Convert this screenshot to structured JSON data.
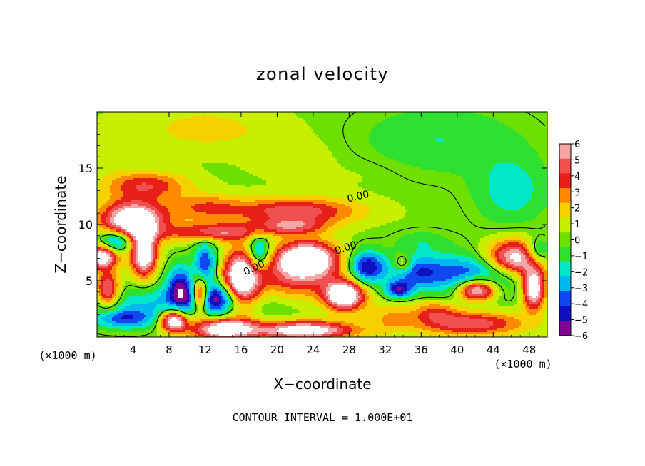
{
  "chart_data": {
    "type": "heatmap",
    "title": "zonal velocity",
    "xlabel": "X−coordinate",
    "ylabel": "Z−coordinate",
    "x_unit_left": "(×1000 m)",
    "x_unit_right": "(×1000 m)",
    "xlim": [
      0,
      50
    ],
    "ylim": [
      0,
      20
    ],
    "x_ticks": [
      "4",
      "8",
      "12",
      "16",
      "20",
      "24",
      "28",
      "32",
      "36",
      "40",
      "44",
      "48"
    ],
    "y_ticks": [
      "5",
      "10",
      "15"
    ],
    "colorbar": {
      "range": [
        -6,
        6
      ],
      "ticks": [
        "6",
        "5",
        "4",
        "3",
        "2",
        "1",
        "0",
        "−1",
        "−2",
        "−3",
        "−4",
        "−5",
        "−6"
      ],
      "saturated_color": "#ffffff"
    },
    "contour_labels": [
      "0.00",
      "0.00",
      "0.00"
    ],
    "footer": "CONTOUR INTERVAL = 1.000E+01",
    "colors": {
      "pos_6": "#f4a6a6",
      "pos_5": "#f05050",
      "pos_4": "#e8201a",
      "pos_3": "#ff8a00",
      "pos_2": "#f7d000",
      "pos_1": "#c6f000",
      "zero": "#6de000",
      "neg_1": "#30e030",
      "neg_2": "#00e8c8",
      "neg_3": "#00b8f0",
      "neg_4": "#1048f0",
      "neg_5": "#1010c0",
      "neg_6": "#800090"
    },
    "blobs": [
      {
        "x": 4,
        "y": 10.3,
        "rx": 3.5,
        "ry": 1.8,
        "v": 9
      },
      {
        "x": 5.2,
        "y": 7.3,
        "rx": 1.4,
        "ry": 2.0,
        "v": 8
      },
      {
        "x": 0.5,
        "y": 7.2,
        "rx": 1.8,
        "ry": 1.1,
        "v": 8
      },
      {
        "x": 1.2,
        "y": 4.2,
        "rx": 1.3,
        "ry": 1.6,
        "v": 6
      },
      {
        "x": 2.0,
        "y": 8.5,
        "rx": 2.0,
        "ry": 1.0,
        "v": -6
      },
      {
        "x": 5.5,
        "y": 13.5,
        "rx": 4.5,
        "ry": 1.2,
        "v": 4
      },
      {
        "x": 12,
        "y": 11.5,
        "rx": 4.0,
        "ry": 1.2,
        "v": 3
      },
      {
        "x": 22,
        "y": 11.2,
        "rx": 7.0,
        "ry": 1.2,
        "v": 5
      },
      {
        "x": 13,
        "y": 9.3,
        "rx": 5.0,
        "ry": 0.8,
        "v": 5
      },
      {
        "x": 21.5,
        "y": 9.8,
        "rx": 4.0,
        "ry": 0.7,
        "v": 4
      },
      {
        "x": 23.3,
        "y": 7.0,
        "rx": 3.3,
        "ry": 1.5,
        "v": 9
      },
      {
        "x": 27.5,
        "y": 3.7,
        "rx": 2.2,
        "ry": 1.3,
        "v": 9
      },
      {
        "x": 22,
        "y": 5.2,
        "rx": 5.0,
        "ry": 2.0,
        "v": 4
      },
      {
        "x": 16,
        "y": 5.0,
        "rx": 2.0,
        "ry": 2.6,
        "v": 9
      },
      {
        "x": 12.0,
        "y": 6.5,
        "rx": 1.2,
        "ry": 2.0,
        "v": -5
      },
      {
        "x": 11.5,
        "y": 3.7,
        "rx": 1.0,
        "ry": 1.5,
        "v": 9
      },
      {
        "x": 18.0,
        "y": 7.5,
        "rx": 1.2,
        "ry": 1.5,
        "v": -5
      },
      {
        "x": 13.2,
        "y": 3.5,
        "rx": 2.5,
        "ry": 1.3,
        "v": -5
      },
      {
        "x": 8.5,
        "y": 1.5,
        "rx": 1.5,
        "ry": 1.0,
        "v": 9
      },
      {
        "x": 9.2,
        "y": 4.5,
        "rx": 1.5,
        "ry": 2.0,
        "v": -5
      },
      {
        "x": 14,
        "y": 0.7,
        "rx": 3.5,
        "ry": 1.0,
        "v": 8
      },
      {
        "x": 23,
        "y": 0.6,
        "rx": 5.5,
        "ry": 0.8,
        "v": 8
      },
      {
        "x": 3,
        "y": 1.6,
        "rx": 3.5,
        "ry": 0.9,
        "v": -4
      },
      {
        "x": 9,
        "y": 3.0,
        "rx": 10,
        "ry": 1.6,
        "v": -3
      },
      {
        "x": 30,
        "y": 6.2,
        "rx": 2.0,
        "ry": 1.5,
        "v": -6
      },
      {
        "x": 35.5,
        "y": 5.8,
        "rx": 3.0,
        "ry": 1.5,
        "v": -4
      },
      {
        "x": 33.5,
        "y": 4.2,
        "rx": 1.5,
        "ry": 0.8,
        "v": -5
      },
      {
        "x": 42,
        "y": 5.5,
        "rx": 5.0,
        "ry": 2.0,
        "v": -5
      },
      {
        "x": 46.5,
        "y": 7.0,
        "rx": 3.5,
        "ry": 1.6,
        "v": 8
      },
      {
        "x": 42.2,
        "y": 4.2,
        "rx": 2.2,
        "ry": 1.0,
        "v": 9
      },
      {
        "x": 48.5,
        "y": 4.3,
        "rx": 1.3,
        "ry": 1.8,
        "v": 8
      },
      {
        "x": 49,
        "y": 7.5,
        "rx": 1.5,
        "ry": 1.2,
        "v": -5
      },
      {
        "x": 41.5,
        "y": 1.2,
        "rx": 6.0,
        "ry": 1.1,
        "v": 5
      },
      {
        "x": 37.5,
        "y": 2.3,
        "rx": 2.5,
        "ry": 1.0,
        "v": 3
      },
      {
        "x": 32.5,
        "y": 1.8,
        "rx": 2.5,
        "ry": 1.3,
        "v": 2
      },
      {
        "x": 34,
        "y": 6.5,
        "rx": 1.0,
        "ry": 0.8,
        "v": 3
      },
      {
        "x": 36,
        "y": 8.5,
        "rx": 3.0,
        "ry": 1.0,
        "v": -1.5
      },
      {
        "x": 38,
        "y": 17.5,
        "rx": 9,
        "ry": 3.0,
        "v": -1.8
      },
      {
        "x": 46,
        "y": 13,
        "rx": 4,
        "ry": 3.0,
        "v": -2.5
      },
      {
        "x": 12,
        "y": 18.5,
        "rx": 8,
        "ry": 2.0,
        "v": 1.6
      },
      {
        "x": 22,
        "y": 16,
        "rx": 5,
        "ry": 2.0,
        "v": 0.8
      },
      {
        "x": 30,
        "y": 14.5,
        "rx": 4,
        "ry": 1.5,
        "v": 0.4
      },
      {
        "x": 2,
        "y": 16.5,
        "rx": 2,
        "ry": 2.5,
        "v": 0.7
      }
    ]
  }
}
